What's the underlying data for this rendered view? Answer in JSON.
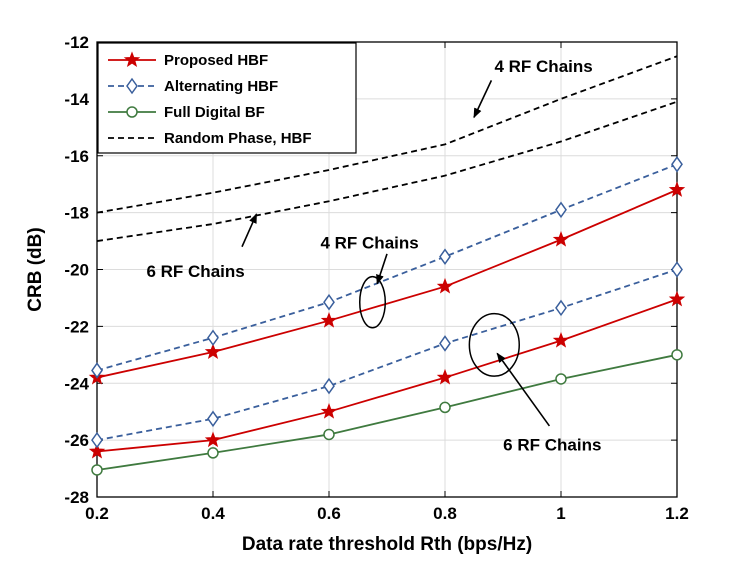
{
  "chart_data": {
    "type": "line",
    "xlabel": "Data rate threshold Rth (bps/Hz)",
    "ylabel": "CRB (dB)",
    "xlim": [
      0.2,
      1.2
    ],
    "ylim": [
      -28,
      -12
    ],
    "xticks": [
      0.2,
      0.4,
      0.6,
      0.8,
      1.0,
      1.2
    ],
    "xtick_labels": [
      "0.2",
      "0.4",
      "0.6",
      "0.8",
      "1",
      "1.2"
    ],
    "yticks": [
      -28,
      -26,
      -24,
      -22,
      -20,
      -18,
      -16,
      -14,
      -12
    ],
    "ytick_labels": [
      "-28",
      "-26",
      "-24",
      "-22",
      "-20",
      "-18",
      "-16",
      "-14",
      "-12"
    ],
    "grid": true,
    "legend_position": "top-left",
    "legend": [
      {
        "label": "Proposed HBF",
        "color": "#cc0000",
        "dash": "solid",
        "marker": "star"
      },
      {
        "label": "Alternating HBF",
        "color": "#3a5f9c",
        "dash": "dashed",
        "marker": "diamond"
      },
      {
        "label": "Full Digital BF",
        "color": "#3f7a3f",
        "dash": "solid",
        "marker": "circle"
      },
      {
        "label": "Random Phase, HBF",
        "color": "#000000",
        "dash": "dashed",
        "marker": "none"
      }
    ],
    "x": [
      0.2,
      0.4,
      0.6,
      0.8,
      1.0,
      1.2
    ],
    "series": [
      {
        "legend_index": 0,
        "values": [
          -23.8,
          -22.9,
          -21.8,
          -20.6,
          -18.95,
          -17.2
        ]
      },
      {
        "legend_index": 0,
        "values": [
          -26.4,
          -26.0,
          -25.0,
          -23.8,
          -22.5,
          -21.05
        ]
      },
      {
        "legend_index": 1,
        "values": [
          -23.55,
          -22.4,
          -21.15,
          -19.55,
          -17.9,
          -16.3
        ]
      },
      {
        "legend_index": 1,
        "values": [
          -26.0,
          -25.25,
          -24.1,
          -22.6,
          -21.35,
          -20.0
        ]
      },
      {
        "legend_index": 2,
        "values": [
          -27.05,
          -26.45,
          -25.8,
          -24.85,
          -23.85,
          -23.0
        ]
      },
      {
        "legend_index": 3,
        "values": [
          -18.0,
          -17.3,
          -16.5,
          -15.6,
          -14.0,
          -12.5
        ]
      },
      {
        "legend_index": 3,
        "values": [
          -19.0,
          -18.4,
          -17.6,
          -16.7,
          -15.5,
          -14.1
        ]
      }
    ],
    "annotations": [
      {
        "text": "4 RF Chains",
        "x": 0.97,
        "y": -12.85,
        "arrow_from": [
          0.88,
          -13.35
        ],
        "arrow_to": [
          0.85,
          -14.65
        ]
      },
      {
        "text": "6 RF Chains",
        "x": 0.37,
        "y": -20.05,
        "arrow_from": [
          0.45,
          -19.2
        ],
        "arrow_to": [
          0.475,
          -18.05
        ]
      },
      {
        "text": "4 RF Chains",
        "x": 0.67,
        "y": -19.05,
        "ellipse_center": [
          0.675,
          -21.15
        ],
        "ellipse_radius": [
          0.022,
          0.9
        ],
        "arrow_from": [
          0.7,
          -19.45
        ],
        "arrow_to": [
          0.683,
          -20.5
        ]
      },
      {
        "text": "6 RF Chains",
        "x": 0.985,
        "y": -26.15,
        "ellipse_center": [
          0.885,
          -22.65
        ],
        "ellipse_radius": [
          0.043,
          1.1
        ],
        "arrow_from": [
          0.98,
          -25.5
        ],
        "arrow_to": [
          0.89,
          -22.95
        ]
      }
    ]
  }
}
